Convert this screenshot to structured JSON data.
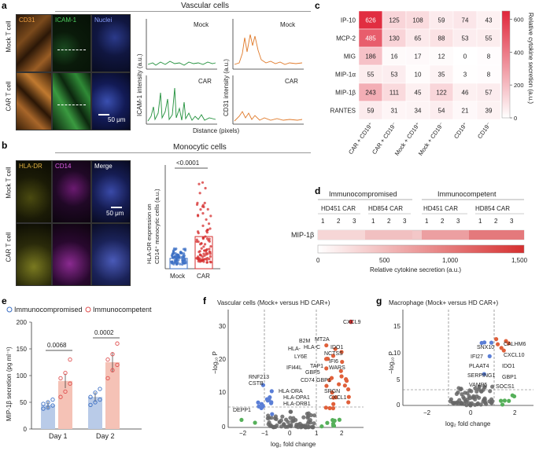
{
  "panel_a": {
    "label": "a",
    "section_title": "Vascular cells",
    "channels": [
      "CD31",
      "ICAM-1",
      "Nuclei"
    ],
    "rows": [
      "Mock T cell",
      "CAR T cell"
    ],
    "scale_bar": "50 μm",
    "ylabel_left": "ICAM-1 intensity (a.u.)",
    "ylabel_right": "CD31 intensity (a.u.)",
    "xlabel": "Distance (pixels)",
    "trace_labels": [
      "Mock",
      "CAR",
      "Mock",
      "CAR"
    ]
  },
  "panel_b": {
    "label": "b",
    "section_title": "Monocytic cells",
    "channels": [
      "HLA-DR",
      "CD14",
      "Merge"
    ],
    "rows": [
      "Mock T cell",
      "CAR T cell"
    ],
    "scale_bar": "50 μm",
    "ylabel_line1": "HLA-DR expression on",
    "ylabel_line2": "CD14⁺ monocytic cells (a.u.)",
    "pvalue": "<0.0001",
    "categories": [
      "Mock",
      "CAR"
    ],
    "colors": {
      "mock": "#3b6fc4",
      "car": "#d62f2f"
    }
  },
  "panel_c": {
    "label": "c",
    "rows": [
      "IP-10",
      "MCP-2",
      "MIG",
      "MIP-1α",
      "MIP-1β",
      "RANTES"
    ],
    "columns": [
      "CAR + CD19⁺",
      "CAR + CD19⁻",
      "Mock + CD19⁺",
      "Mock + CD19⁻",
      "CD19⁺",
      "CD19⁻"
    ],
    "colorbar_label": "Relative cytokine secretion (a.u.)",
    "colorbar_ticks": [
      "0",
      "200",
      "400",
      "600"
    ]
  },
  "panel_d": {
    "label": "d",
    "group_labels": [
      "Immunocompromised",
      "Immunocompetent"
    ],
    "sub_labels": [
      "HD451 CAR",
      "HD854 CAR",
      "HD451 CAR",
      "HD854 CAR"
    ],
    "replicates": [
      "1",
      "2",
      "3"
    ],
    "row_label": "MIP-1β",
    "xlabel": "Relative cytokine secretion (a.u.)",
    "ticks": [
      "0",
      "500",
      "1,000",
      "1,500"
    ]
  },
  "panel_e": {
    "label": "e",
    "legend": [
      "Immunocompromised",
      "Immunocompetent"
    ],
    "ylabel": "MIP-1β secretion (pg ml⁻¹)",
    "pvalues": [
      "0.0068",
      "0.0002"
    ],
    "yticks": [
      "0",
      "50",
      "100",
      "150",
      "200"
    ]
  },
  "panel_f": {
    "label": "f",
    "title": "Vascular cells (Mock+ versus HD CAR+)",
    "xlabel": "log₂ fold change",
    "ylabel": "−log₁₀ P",
    "genes": [
      "CXCL9",
      "B2M",
      "MT2A",
      "HLA-",
      "IDO1",
      "HLA-C",
      "NCTSS",
      "LY6E",
      "IFI6",
      "IFI44L",
      "TAP1",
      "WARS",
      "RNF213",
      "GBP5",
      "CSTB",
      "CD74",
      "GBP1",
      "HLA-DRA",
      "HLA-DPA1",
      "SRGN",
      "CXCL1",
      "HLA-DRB1",
      "DEPP1"
    ],
    "xticks": [
      "−2",
      "−1",
      "0",
      "1",
      "2"
    ],
    "yticks": [
      "0",
      "10",
      "20",
      "30"
    ]
  },
  "panel_g": {
    "label": "g",
    "title": "Macrophage (Mock+ versus HD CAR+)",
    "xlabel": "log₂ fold change",
    "ylabel": "−log₁₀ P",
    "genes": [
      "CALHM6",
      "SNX10",
      "CXCL10",
      "IFI27",
      "IDO1",
      "PLAAT4",
      "SERPING1",
      "GBP1",
      "VAMP5",
      "SOCS1"
    ],
    "xticks": [
      "−2",
      "0",
      "2"
    ],
    "yticks": [
      "0",
      "5",
      "10",
      "15"
    ]
  },
  "chart_data": [
    {
      "type": "heatmap",
      "panel": "c",
      "rows": [
        "IP-10",
        "MCP-2",
        "MIG",
        "MIP-1α",
        "MIP-1β",
        "RANTES"
      ],
      "columns": [
        "CAR + CD19⁺",
        "CAR + CD19⁻",
        "Mock + CD19⁺",
        "Mock + CD19⁻",
        "CD19⁺",
        "CD19⁻"
      ],
      "values": [
        [
          626,
          125,
          108,
          59,
          74,
          43
        ],
        [
          485,
          130,
          65,
          88,
          53,
          55
        ],
        [
          186,
          16,
          17,
          12,
          0,
          8
        ],
        [
          55,
          53,
          10,
          35,
          3,
          8
        ],
        [
          243,
          111,
          45,
          122,
          46,
          57
        ],
        [
          59,
          31,
          34,
          54,
          21,
          39
        ]
      ],
      "range": [
        0,
        650
      ]
    },
    {
      "type": "bar",
      "panel": "e",
      "categories": [
        "Day 1",
        "Day 2"
      ],
      "series": [
        {
          "name": "Immunocompromised",
          "values": [
            45,
            60
          ],
          "points": [
            [
              38,
              40,
              44,
              47,
              50,
              55
            ],
            [
              45,
              50,
              55,
              60,
              68,
              75
            ]
          ]
        },
        {
          "name": "Immunocompetent",
          "values": [
            90,
            125
          ],
          "points": [
            [
              60,
              70,
              85,
              95,
              105,
              130
            ],
            [
              95,
              110,
              120,
              130,
              140,
              160
            ]
          ]
        }
      ],
      "ylim": [
        0,
        200
      ]
    },
    {
      "type": "bar",
      "panel": "b",
      "categories": [
        "Mock",
        "CAR"
      ],
      "values": [
        1.0,
        3.1
      ],
      "ylim": [
        0,
        10
      ]
    }
  ]
}
